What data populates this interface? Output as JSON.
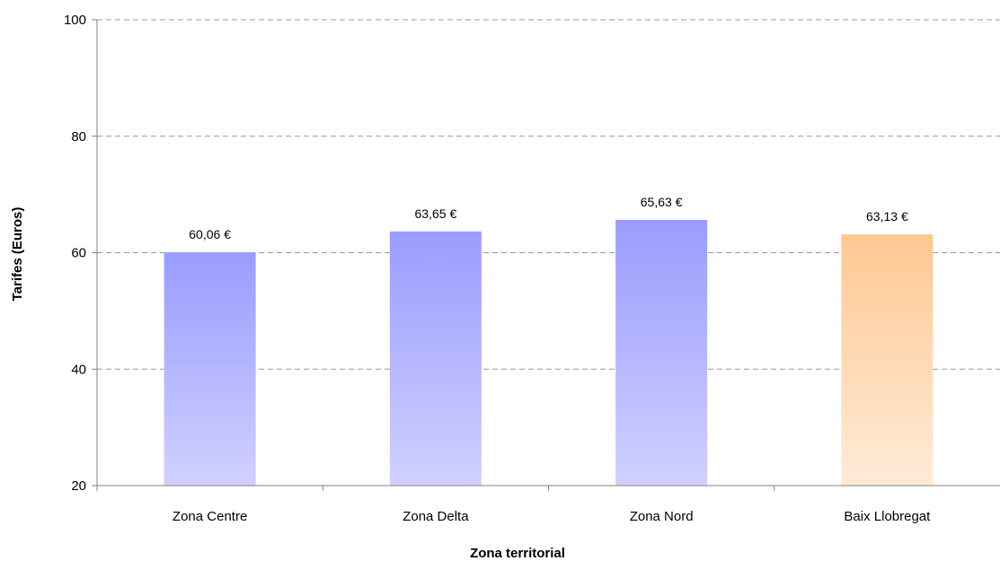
{
  "chart_data": {
    "type": "bar",
    "title": "",
    "xlabel": "Zona territorial",
    "ylabel": "Tarifes (Euros)",
    "ylim": [
      20,
      100
    ],
    "yticks": [
      20,
      40,
      60,
      80,
      100
    ],
    "categories": [
      "Zona Centre",
      "Zona Delta",
      "Zona Nord",
      "Baix Llobregat"
    ],
    "values": [
      60.06,
      63.65,
      65.63,
      63.13
    ],
    "data_labels": [
      "60,06 €",
      "63,65 €",
      "65,63 €",
      "63,13 €"
    ],
    "colors": [
      "#9a9cfe",
      "#9a9cfe",
      "#9a9cfe",
      "#ffc892"
    ],
    "grid": true,
    "legend": "none"
  }
}
